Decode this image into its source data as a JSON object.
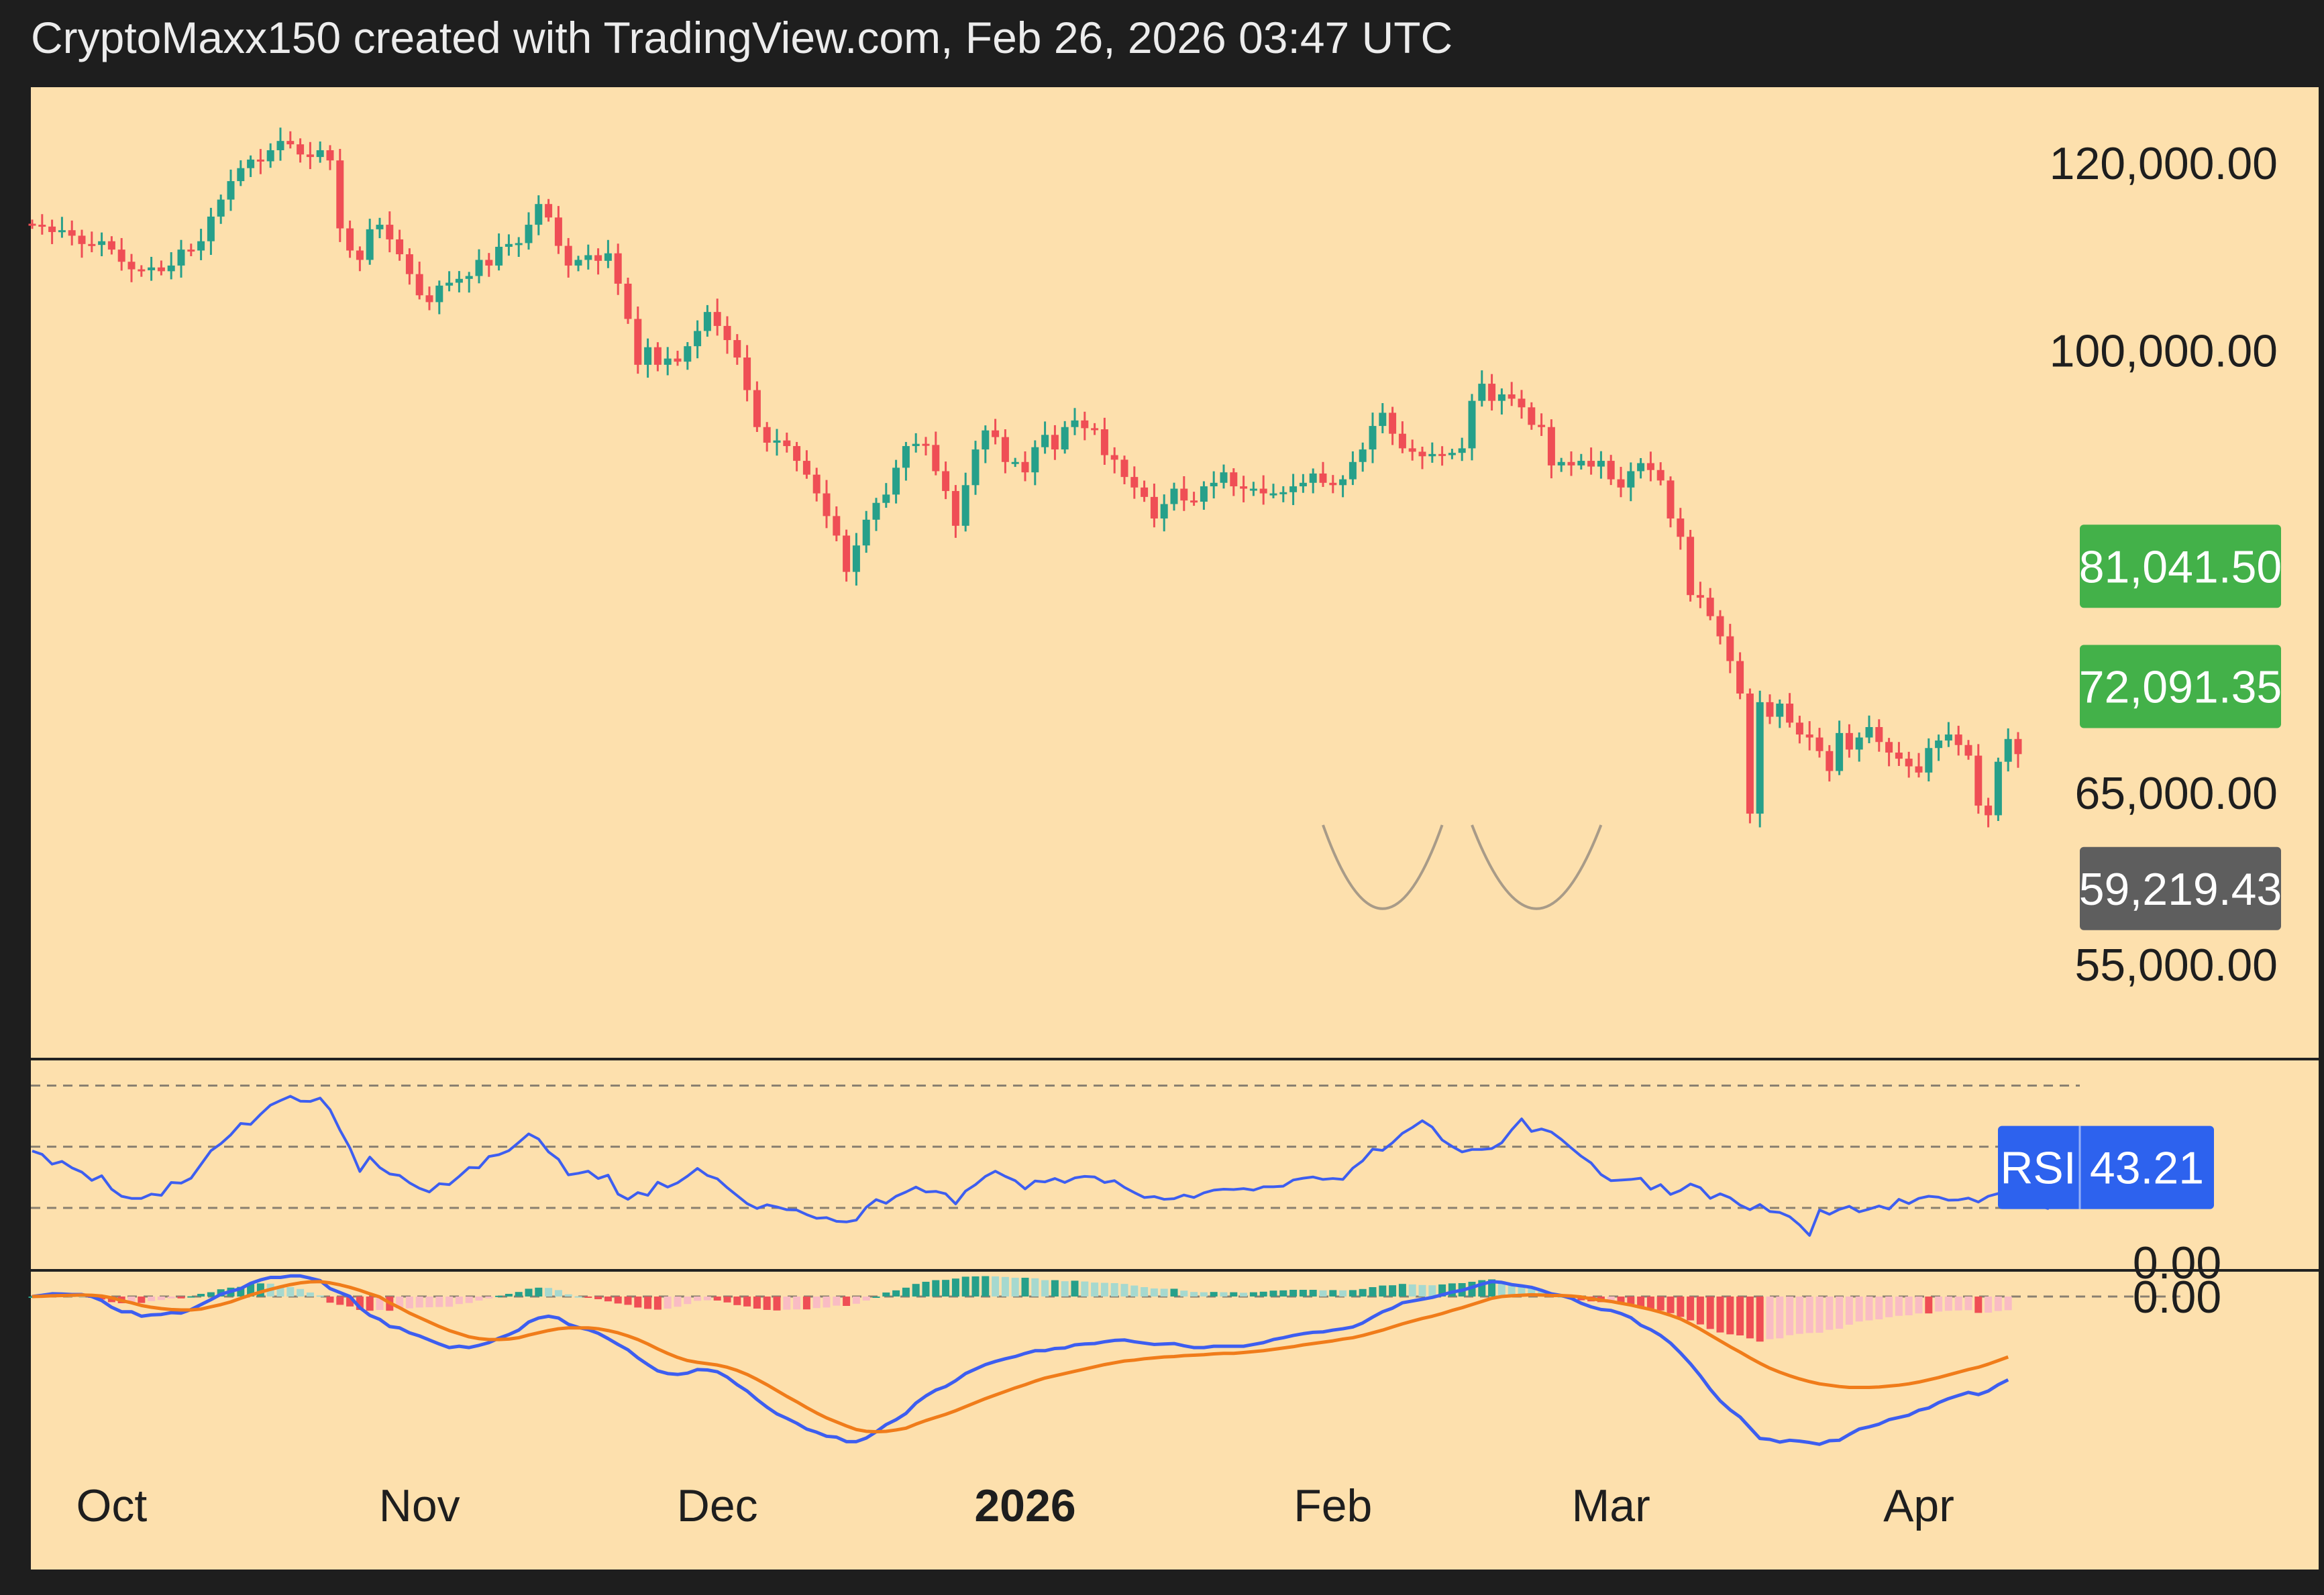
{
  "header": {
    "caption": "CryptoMaxx150 created with TradingView.com, Feb 26, 2026 03:47 UTC"
  },
  "colors": {
    "background": "#fde0ad",
    "frame": "#1e1e1e",
    "up_candle": "#26a08a",
    "down_candle": "#ef4e55",
    "rsi_line": "#3d5ef0",
    "macd_line": "#3d5ef0",
    "signal_line": "#f07c1a",
    "hist_up_strong": "#26a08a",
    "hist_up_weak": "#a6d9cf",
    "hist_down_strong": "#ef4e55",
    "hist_down_weak": "#f9bcc4",
    "green_label": "#43b149",
    "gray_label": "#5e5e5e",
    "rsi_badge": "#2d62ee",
    "pattern_arc": "#a89b88"
  },
  "chart_data": {
    "type": "candlestick",
    "symbol_interval": "daily",
    "x_range": [
      "2025-09-23",
      "2026-04-25"
    ],
    "price_axis": {
      "scale": "log",
      "ticks": [
        "120,000.00",
        "100,000.00",
        "65,000.00",
        "55,000.00"
      ],
      "tick_values": [
        120000,
        100000,
        65000,
        55000
      ]
    },
    "price_labels": [
      {
        "text": "81,041.50",
        "value": 81041.5,
        "color": "green"
      },
      {
        "text": "72,091.35",
        "value": 72091.35,
        "color": "green"
      },
      {
        "text": "59,219.43",
        "value": 59219.43,
        "color": "gray"
      }
    ],
    "time_axis": {
      "labels": [
        {
          "text": "Oct",
          "date": "2025-10-01",
          "bold": false
        },
        {
          "text": "Nov",
          "date": "2025-11-01",
          "bold": false
        },
        {
          "text": "Dec",
          "date": "2025-12-01",
          "bold": false
        },
        {
          "text": "2026",
          "date": "2026-01-01",
          "bold": true
        },
        {
          "text": "Feb",
          "date": "2026-02-01",
          "bold": false
        },
        {
          "text": "Mar",
          "date": "2026-03-01",
          "bold": false
        },
        {
          "text": "Apr",
          "date": "2026-04-01",
          "bold": false
        }
      ]
    },
    "ohlc": {
      "start_date": "2025-09-23",
      "close": [
        113000,
        112800,
        112200,
        112400,
        111800,
        110900,
        110800,
        111200,
        110300,
        109000,
        108200,
        108100,
        108400,
        108000,
        108600,
        110300,
        110200,
        111200,
        113900,
        115800,
        117900,
        119400,
        120400,
        120200,
        121500,
        122600,
        122200,
        121000,
        120700,
        121500,
        120300,
        112600,
        110200,
        109200,
        112500,
        113000,
        111400,
        109800,
        107700,
        105500,
        104800,
        106500,
        106800,
        107200,
        107500,
        109200,
        108600,
        110600,
        110900,
        111000,
        113000,
        115300,
        113800,
        110700,
        108600,
        109200,
        109700,
        109100,
        109900,
        106700,
        103100,
        98600,
        100300,
        98600,
        99200,
        98900,
        100400,
        101900,
        103800,
        102400,
        101000,
        99300,
        96200,
        92800,
        91400,
        91600,
        91100,
        89800,
        88600,
        87000,
        85100,
        83500,
        80600,
        82700,
        84800,
        86200,
        86900,
        89200,
        91100,
        91300,
        91200,
        88900,
        87200,
        84300,
        87700,
        90800,
        92500,
        91900,
        89700,
        89700,
        88800,
        91000,
        92100,
        90800,
        92800,
        93400,
        92700,
        92600,
        90300,
        89900,
        88400,
        87500,
        86700,
        84900,
        86100,
        87400,
        86400,
        86300,
        87600,
        87900,
        88800,
        87600,
        87400,
        87400,
        87000,
        87000,
        87100,
        87600,
        87900,
        88700,
        87900,
        87700,
        88200,
        89700,
        90800,
        92900,
        94100,
        92200,
        90900,
        90600,
        90200,
        90400,
        90300,
        90500,
        90900,
        95200,
        96800,
        95200,
        95800,
        95400,
        94600,
        93000,
        92800,
        89400,
        89700,
        89400,
        89800,
        89300,
        89800,
        88200,
        87500,
        88900,
        89600,
        89000,
        88100,
        84900,
        83400,
        78800,
        78600,
        77200,
        75700,
        73900,
        71600,
        63700,
        71000,
        70000,
        70900,
        69600,
        68800,
        68600,
        67700,
        66400,
        68900,
        67800,
        68600,
        69300,
        68300,
        67600,
        67200,
        66700,
        66300,
        67900,
        68400,
        68800,
        68100,
        67400,
        64200,
        63600,
        67000,
        68500,
        67500
      ],
      "note": "Daily closes used to draw candles; open = previous close."
    },
    "pattern_annotation": {
      "type": "double-bottom arcs",
      "arcs": [
        {
          "from": "2026-01-31",
          "to": "2026-02-12"
        },
        {
          "from": "2026-02-15",
          "to": "2026-02-28"
        }
      ]
    },
    "rsi": {
      "label": "RSI",
      "last_value": "43.21",
      "bands": [
        30,
        50,
        70
      ],
      "series": [
        48.6,
        47.5,
        44.3,
        45.2,
        43.1,
        41.7,
        39.0,
        40.5,
        36.1,
        33.8,
        33.1,
        33.1,
        34.5,
        34.1,
        38.3,
        38.1,
        39.7,
        44.2,
        48.7,
        51.0,
        53.9,
        57.6,
        57.3,
        60.6,
        63.6,
        65.1,
        66.5,
        64.9,
        64.8,
        65.9,
        62.1,
        55.4,
        49.6,
        41.9,
        46.6,
        43.2,
        41.1,
        40.6,
        38.2,
        36.4,
        35.2,
        37.9,
        37.6,
        40.3,
        43.2,
        43.1,
        46.8,
        47.4,
        48.7,
        51.4,
        54.2,
        52.5,
        48.3,
        45.9,
        40.8,
        41.3,
        42.0,
        39.6,
        40.7,
        34.5,
        32.8,
        35.0,
        34.1,
        38.4,
        36.8,
        38.2,
        40.4,
        42.9,
        40.6,
        39.5,
        36.6,
        34.0,
        31.4,
        29.8,
        31.0,
        30.3,
        29.4,
        29.3,
        27.8,
        26.6,
        26.8,
        25.6,
        25.4,
        26.0,
        30.2,
        32.7,
        31.5,
        33.8,
        35.2,
        36.8,
        35.2,
        35.4,
        34.6,
        31.3,
        35.5,
        37.6,
        40.3,
        42.0,
        40.3,
        38.9,
        36.2,
        38.8,
        38.5,
        39.6,
        38.3,
        39.8,
        40.3,
        40.1,
        38.3,
        38.9,
        36.7,
        35.0,
        33.4,
        33.7,
        32.8,
        33.0,
        34.2,
        33.4,
        34.9,
        35.8,
        36.1,
        36.0,
        36.3,
        35.8,
        36.9,
        36.9,
        37.1,
        39.1,
        39.7,
        40.1,
        39.3,
        39.6,
        39.3,
        43.0,
        45.4,
        49.2,
        48.8,
        51.3,
        54.4,
        56.3,
        58.5,
        56.4,
        52.2,
        50.1,
        48.3,
        49.1,
        49.1,
        49.4,
        51.3,
        55.5,
        59.1,
        55.0,
        55.8,
        54.8,
        52.4,
        49.6,
        46.9,
        44.7,
        40.9,
        38.9,
        39.1,
        39.3,
        39.7,
        36.1,
        37.6,
        34.4,
        35.7,
        37.8,
        36.6,
        33.1,
        34.6,
        33.3,
        30.9,
        29.4,
        31.1,
        28.8,
        28.5,
        27.1,
        24.4,
        21.0,
        29.3,
        27.9,
        29.5,
        30.5,
        28.7,
        29.6,
        30.6,
        29.6,
        32.8,
        31.4,
        33.1,
        33.8,
        33.5,
        32.5,
        32.6,
        33.2,
        31.9,
        33.8,
        34.7,
        34.1,
        33.2,
        35.6,
        30.9,
        29.8,
        40.6,
        43.5,
        43.2
      ]
    },
    "macd": {
      "zero_label": "0.00",
      "overlap_label": "0.00",
      "macd_line": [
        0.0,
        0.05,
        0.11,
        0.1,
        0.08,
        0.08,
        -0.0,
        -0.09,
        -0.24,
        -0.34,
        -0.34,
        -0.44,
        -0.41,
        -0.4,
        -0.36,
        -0.37,
        -0.29,
        -0.18,
        -0.07,
        0.09,
        0.21,
        0.32,
        0.53,
        0.67,
        0.77,
        0.77,
        0.83,
        0.83,
        0.74,
        0.64,
        0.32,
        0.16,
        0.0,
        -0.25,
        -0.42,
        -0.51,
        -0.67,
        -0.7,
        -0.81,
        -0.88,
        -0.97,
        -1.06,
        -1.14,
        -1.11,
        -1.14,
        -1.09,
        -1.03,
        -0.93,
        -0.85,
        -0.75,
        -0.57,
        -0.48,
        -0.44,
        -0.48,
        -0.62,
        -0.69,
        -0.74,
        -0.82,
        -0.94,
        -1.07,
        -1.19,
        -1.37,
        -1.52,
        -1.66,
        -1.72,
        -1.74,
        -1.71,
        -1.63,
        -1.64,
        -1.68,
        -1.8,
        -1.97,
        -2.11,
        -2.3,
        -2.47,
        -2.62,
        -2.72,
        -2.83,
        -2.96,
        -3.03,
        -3.12,
        -3.14,
        -3.24,
        -3.24,
        -3.16,
        -3.02,
        -2.86,
        -2.75,
        -2.61,
        -2.38,
        -2.22,
        -2.09,
        -2.01,
        -1.88,
        -1.72,
        -1.62,
        -1.52,
        -1.45,
        -1.39,
        -1.34,
        -1.27,
        -1.21,
        -1.21,
        -1.16,
        -1.15,
        -1.08,
        -1.06,
        -1.05,
        -1.01,
        -0.98,
        -0.97,
        -1.01,
        -1.04,
        -1.07,
        -1.06,
        -1.05,
        -1.1,
        -1.14,
        -1.14,
        -1.11,
        -1.11,
        -1.11,
        -1.11,
        -1.07,
        -1.03,
        -0.96,
        -0.92,
        -0.87,
        -0.83,
        -0.8,
        -0.79,
        -0.75,
        -0.72,
        -0.68,
        -0.59,
        -0.46,
        -0.34,
        -0.26,
        -0.14,
        -0.1,
        -0.06,
        -0.02,
        0.07,
        0.18,
        0.25,
        0.37,
        0.5,
        0.6,
        0.57,
        0.48,
        0.43,
        0.37,
        0.25,
        0.11,
        0.04,
        -0.04,
        -0.15,
        -0.23,
        -0.29,
        -0.31,
        -0.38,
        -0.47,
        -0.64,
        -0.74,
        -0.87,
        -1.04,
        -1.26,
        -1.5,
        -1.77,
        -2.07,
        -2.33,
        -2.53,
        -2.69,
        -2.93,
        -3.17,
        -3.19,
        -3.25,
        -3.21,
        -3.23,
        -3.26,
        -3.3,
        -3.22,
        -3.21,
        -3.08,
        -2.96,
        -2.91,
        -2.85,
        -2.75,
        -2.7,
        -2.65,
        -2.54,
        -2.49,
        -2.37,
        -2.28,
        -2.21,
        -2.14,
        -2.19,
        -2.11,
        -1.97,
        -1.86
      ],
      "signal_line": [
        0.0,
        0.01,
        0.03,
        0.04,
        0.05,
        0.06,
        0.05,
        0.02,
        -0.03,
        -0.09,
        -0.14,
        -0.2,
        -0.24,
        -0.27,
        -0.29,
        -0.3,
        -0.3,
        -0.28,
        -0.23,
        -0.18,
        -0.12,
        -0.04,
        0.06,
        0.18,
        0.29,
        0.39,
        0.48,
        0.55,
        0.59,
        0.6,
        0.55,
        0.47,
        0.37,
        0.25,
        0.11,
        -0.01,
        -0.14,
        -0.25,
        -0.37,
        -0.47,
        -0.57,
        -0.67,
        -0.76,
        -0.83,
        -0.9,
        -0.94,
        -0.96,
        -0.96,
        -0.95,
        -0.92,
        -0.86,
        -0.81,
        -0.76,
        -0.72,
        -0.7,
        -0.7,
        -0.7,
        -0.72,
        -0.76,
        -0.81,
        -0.88,
        -0.96,
        -1.06,
        -1.17,
        -1.27,
        -1.36,
        -1.43,
        -1.47,
        -1.5,
        -1.53,
        -1.58,
        -1.65,
        -1.74,
        -1.85,
        -1.97,
        -2.1,
        -2.23,
        -2.35,
        -2.48,
        -2.6,
        -2.71,
        -2.8,
        -2.89,
        -2.97,
        -3.01,
        -3.02,
        -3.01,
        -2.98,
        -2.94,
        -2.85,
        -2.77,
        -2.7,
        -2.63,
        -2.55,
        -2.46,
        -2.37,
        -2.28,
        -2.2,
        -2.12,
        -2.04,
        -1.97,
        -1.89,
        -1.82,
        -1.77,
        -1.72,
        -1.67,
        -1.62,
        -1.57,
        -1.52,
        -1.48,
        -1.44,
        -1.42,
        -1.39,
        -1.37,
        -1.35,
        -1.34,
        -1.32,
        -1.31,
        -1.3,
        -1.28,
        -1.27,
        -1.27,
        -1.25,
        -1.23,
        -1.21,
        -1.18,
        -1.15,
        -1.12,
        -1.08,
        -1.05,
        -1.02,
        -0.99,
        -0.95,
        -0.92,
        -0.87,
        -0.81,
        -0.75,
        -0.68,
        -0.61,
        -0.55,
        -0.49,
        -0.44,
        -0.38,
        -0.31,
        -0.25,
        -0.18,
        -0.11,
        -0.04,
        0.0,
        0.03,
        0.05,
        0.07,
        0.06,
        0.04,
        0.04,
        0.02,
        -0.01,
        -0.05,
        -0.08,
        -0.11,
        -0.15,
        -0.19,
        -0.24,
        -0.29,
        -0.35,
        -0.42,
        -0.5,
        -0.61,
        -0.73,
        -0.86,
        -0.99,
        -1.12,
        -1.24,
        -1.37,
        -1.49,
        -1.6,
        -1.69,
        -1.77,
        -1.84,
        -1.9,
        -1.95,
        -1.98,
        -2.01,
        -2.03,
        -2.03,
        -2.03,
        -2.02,
        -2.0,
        -1.98,
        -1.95,
        -1.91,
        -1.86,
        -1.81,
        -1.75,
        -1.69,
        -1.63,
        -1.58,
        -1.51,
        -1.43,
        -1.35
      ],
      "histogram": [
        0.0,
        0.04,
        0.08,
        0.06,
        0.03,
        0.02,
        -0.05,
        -0.11,
        -0.21,
        -0.25,
        -0.2,
        -0.24,
        -0.17,
        -0.13,
        -0.07,
        -0.07,
        0.01,
        0.1,
        0.16,
        0.27,
        0.33,
        0.36,
        0.47,
        0.49,
        0.48,
        0.38,
        0.35,
        0.28,
        0.15,
        0.04,
        -0.23,
        -0.31,
        -0.37,
        -0.5,
        -0.53,
        -0.5,
        -0.53,
        -0.45,
        -0.44,
        -0.41,
        -0.4,
        -0.39,
        -0.38,
        -0.28,
        -0.24,
        -0.15,
        -0.07,
        0.03,
        0.1,
        0.17,
        0.29,
        0.33,
        0.32,
        0.24,
        0.08,
        0.01,
        -0.04,
        -0.1,
        -0.18,
        -0.26,
        -0.31,
        -0.41,
        -0.46,
        -0.49,
        -0.45,
        -0.38,
        -0.28,
        -0.16,
        -0.14,
        -0.15,
        -0.22,
        -0.32,
        -0.37,
        -0.45,
        -0.5,
        -0.52,
        -0.49,
        -0.48,
        -0.48,
        -0.43,
        -0.41,
        -0.34,
        -0.35,
        -0.27,
        -0.15,
        0.0,
        0.15,
        0.23,
        0.33,
        0.47,
        0.55,
        0.61,
        0.62,
        0.67,
        0.74,
        0.75,
        0.76,
        0.75,
        0.73,
        0.7,
        0.7,
        0.68,
        0.61,
        0.61,
        0.57,
        0.59,
        0.56,
        0.52,
        0.51,
        0.5,
        0.47,
        0.41,
        0.35,
        0.3,
        0.29,
        0.29,
        0.22,
        0.17,
        0.16,
        0.17,
        0.16,
        0.16,
        0.14,
        0.16,
        0.18,
        0.22,
        0.23,
        0.25,
        0.25,
        0.25,
        0.23,
        0.24,
        0.23,
        0.24,
        0.28,
        0.35,
        0.41,
        0.42,
        0.47,
        0.45,
        0.43,
        0.42,
        0.45,
        0.49,
        0.5,
        0.55,
        0.61,
        0.64,
        0.57,
        0.45,
        0.38,
        0.3,
        0.19,
        0.07,
        0.0,
        -0.06,
        -0.14,
        -0.18,
        -0.21,
        -0.2,
        -0.23,
        -0.28,
        -0.4,
        -0.45,
        -0.52,
        -0.62,
        -0.76,
        -0.89,
        -1.04,
        -1.21,
        -1.34,
        -1.41,
        -1.45,
        -1.56,
        -1.68,
        -1.59,
        -1.56,
        -1.44,
        -1.39,
        -1.36,
        -1.35,
        -1.24,
        -1.2,
        -1.05,
        -0.93,
        -0.89,
        -0.85,
        -0.77,
        -0.72,
        -0.7,
        -0.63,
        -0.63,
        -0.56,
        -0.53,
        -0.52,
        -0.51,
        -0.61,
        -0.6,
        -0.54,
        -0.51
      ]
    }
  }
}
